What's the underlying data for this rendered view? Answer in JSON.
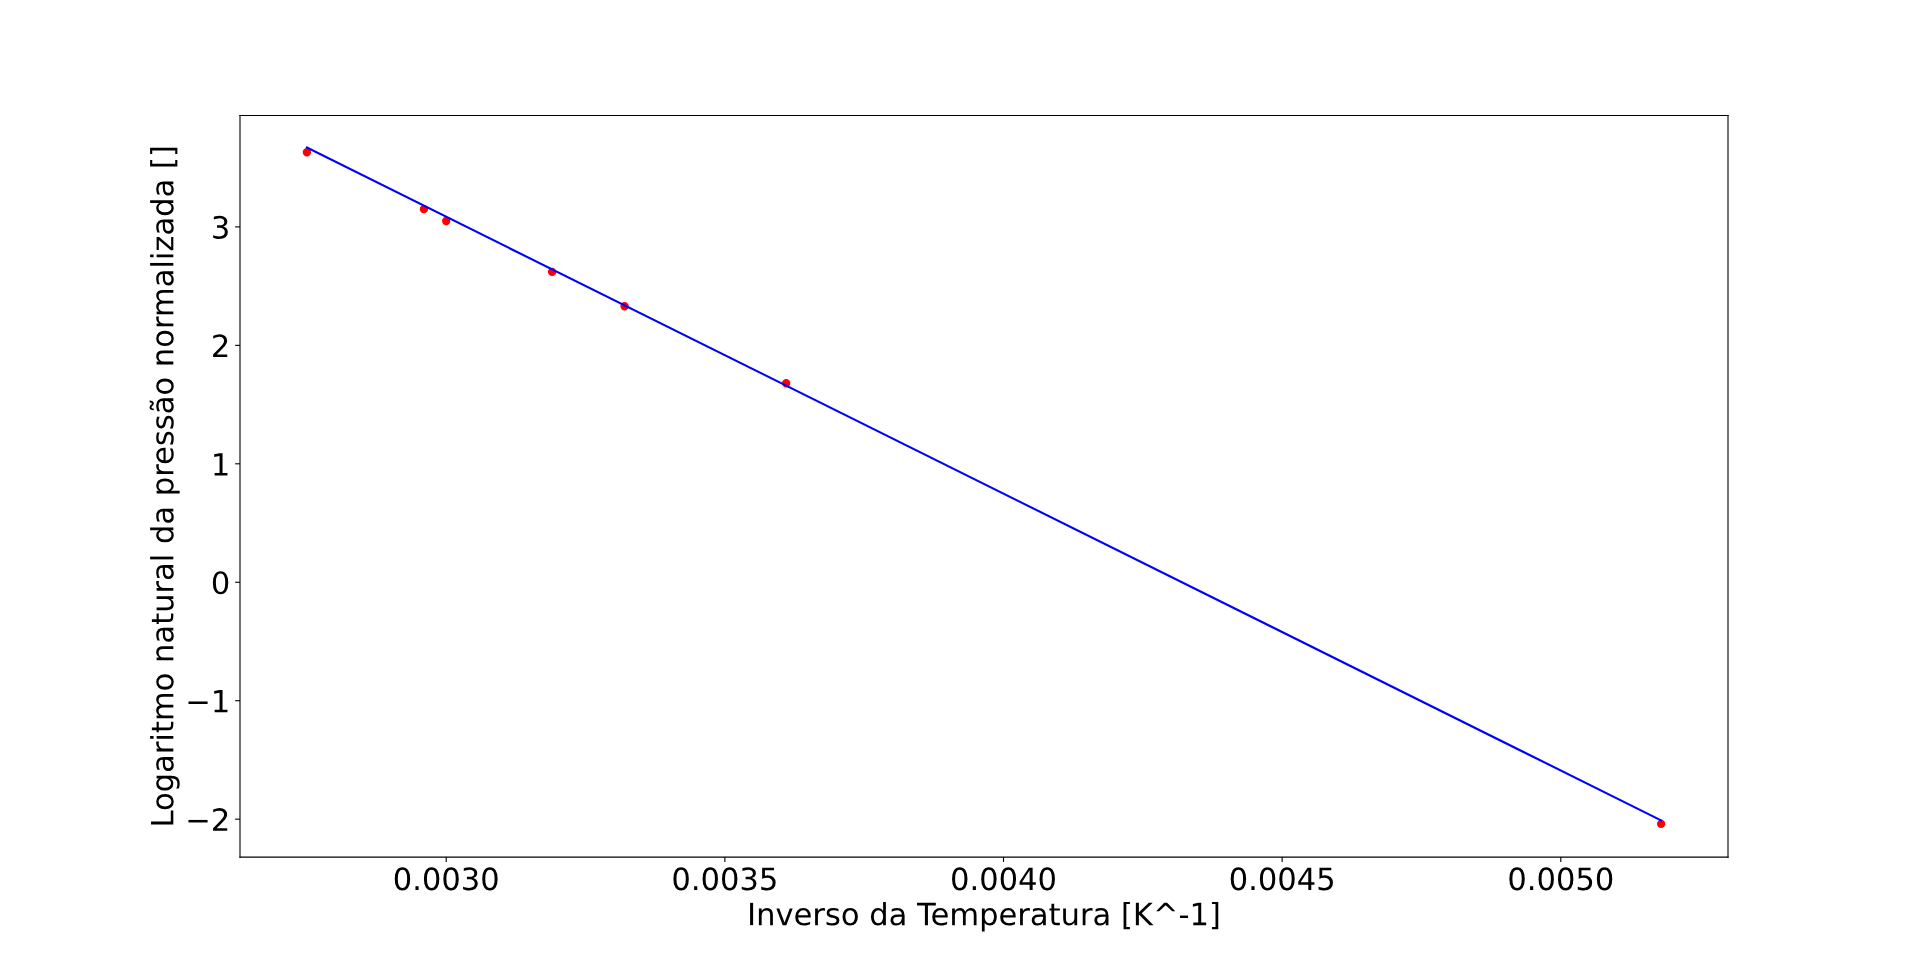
{
  "chart_data": {
    "type": "scatter",
    "xlabel": "Inverso da Temperatura [K^-1]",
    "ylabel": "Logaritmo natural da pressão normalizada []",
    "series": [
      {
        "color": "#ff0000",
        "marker": "circle",
        "x": [
          0.00275,
          0.00296,
          0.003,
          0.00319,
          0.00332,
          0.00361,
          0.00518
        ],
        "values": [
          3.63,
          3.15,
          3.05,
          2.62,
          2.33,
          1.68,
          -2.04
        ]
      },
      {
        "type": "line",
        "color": "#0000ff",
        "marker": "none",
        "line_style": "solid",
        "x": [
          0.00275,
          0.00518
        ],
        "values": [
          3.67,
          -2.01
        ]
      }
    ],
    "xlim": [
      0.00263,
      0.0053
    ],
    "xticks": [
      {
        "value": 0.003,
        "label": "0.0030"
      },
      {
        "value": 0.0035,
        "label": "0.0035"
      },
      {
        "value": 0.004,
        "label": "0.0040"
      },
      {
        "value": 0.0045,
        "label": "0.0045"
      },
      {
        "value": 0.005,
        "label": "0.0050"
      }
    ],
    "ylim": [
      -2.32,
      3.94
    ],
    "yticks": [
      {
        "value": -2,
        "label": "−2"
      },
      {
        "value": -1,
        "label": "−1"
      },
      0,
      1,
      2,
      3
    ],
    "grid": false
  }
}
